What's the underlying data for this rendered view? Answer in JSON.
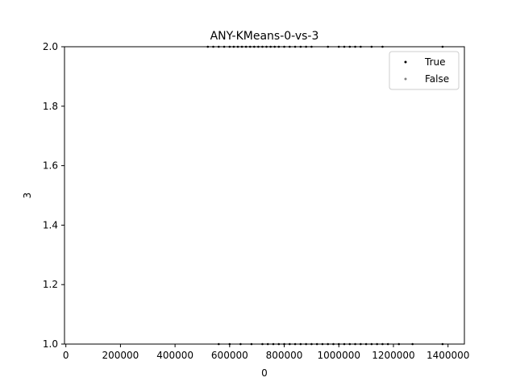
{
  "chart_data": {
    "type": "scatter",
    "title": "ANY-KMeans-0-vs-3",
    "xlabel": "0",
    "ylabel": "3",
    "xlim": [
      -5000,
      1460000
    ],
    "ylim": [
      1.0,
      2.0
    ],
    "xticks": [
      0,
      200000,
      400000,
      600000,
      800000,
      1000000,
      1200000,
      1400000
    ],
    "xtick_labels": [
      "0",
      "200000",
      "400000",
      "600000",
      "800000",
      "1000000",
      "1200000",
      "1400000"
    ],
    "yticks": [
      1.0,
      1.2,
      1.4,
      1.6,
      1.8,
      2.0
    ],
    "ytick_labels": [
      "1.0",
      "1.2",
      "1.4",
      "1.6",
      "1.8",
      "2.0"
    ],
    "grid": false,
    "legend_position": "top-right",
    "series": [
      {
        "name": "True",
        "color": "#000000",
        "points": [
          [
            520000,
            2.0
          ],
          [
            540000,
            2.0
          ],
          [
            560000,
            2.0
          ],
          [
            580000,
            2.0
          ],
          [
            600000,
            2.0
          ],
          [
            615000,
            2.0
          ],
          [
            630000,
            2.0
          ],
          [
            645000,
            2.0
          ],
          [
            660000,
            2.0
          ],
          [
            675000,
            2.0
          ],
          [
            690000,
            2.0
          ],
          [
            705000,
            2.0
          ],
          [
            720000,
            2.0
          ],
          [
            735000,
            2.0
          ],
          [
            750000,
            2.0
          ],
          [
            765000,
            2.0
          ],
          [
            780000,
            2.0
          ],
          [
            800000,
            2.0
          ],
          [
            820000,
            2.0
          ],
          [
            840000,
            2.0
          ],
          [
            860000,
            2.0
          ],
          [
            880000,
            2.0
          ],
          [
            900000,
            2.0
          ],
          [
            960000,
            2.0
          ],
          [
            1000000,
            2.0
          ],
          [
            1020000,
            2.0
          ],
          [
            1040000,
            2.0
          ],
          [
            1060000,
            2.0
          ],
          [
            1080000,
            2.0
          ],
          [
            1120000,
            2.0
          ],
          [
            1160000,
            2.0
          ],
          [
            1380000,
            2.0
          ],
          [
            560000,
            1.0
          ],
          [
            600000,
            1.0
          ],
          [
            640000,
            1.0
          ],
          [
            680000,
            1.0
          ],
          [
            720000,
            1.0
          ],
          [
            740000,
            1.0
          ],
          [
            760000,
            1.0
          ],
          [
            780000,
            1.0
          ],
          [
            800000,
            1.0
          ],
          [
            820000,
            1.0
          ],
          [
            840000,
            1.0
          ],
          [
            860000,
            1.0
          ],
          [
            880000,
            1.0
          ],
          [
            900000,
            1.0
          ],
          [
            920000,
            1.0
          ],
          [
            940000,
            1.0
          ],
          [
            960000,
            1.0
          ],
          [
            980000,
            1.0
          ],
          [
            1000000,
            1.0
          ],
          [
            1020000,
            1.0
          ],
          [
            1040000,
            1.0
          ],
          [
            1060000,
            1.0
          ],
          [
            1080000,
            1.0
          ],
          [
            1100000,
            1.0
          ],
          [
            1120000,
            1.0
          ],
          [
            1140000,
            1.0
          ],
          [
            1160000,
            1.0
          ],
          [
            1180000,
            1.0
          ],
          [
            1220000,
            1.0
          ],
          [
            1270000,
            1.0
          ],
          [
            1380000,
            1.0
          ]
        ]
      },
      {
        "name": "False",
        "color": "#808080",
        "points": []
      }
    ]
  }
}
